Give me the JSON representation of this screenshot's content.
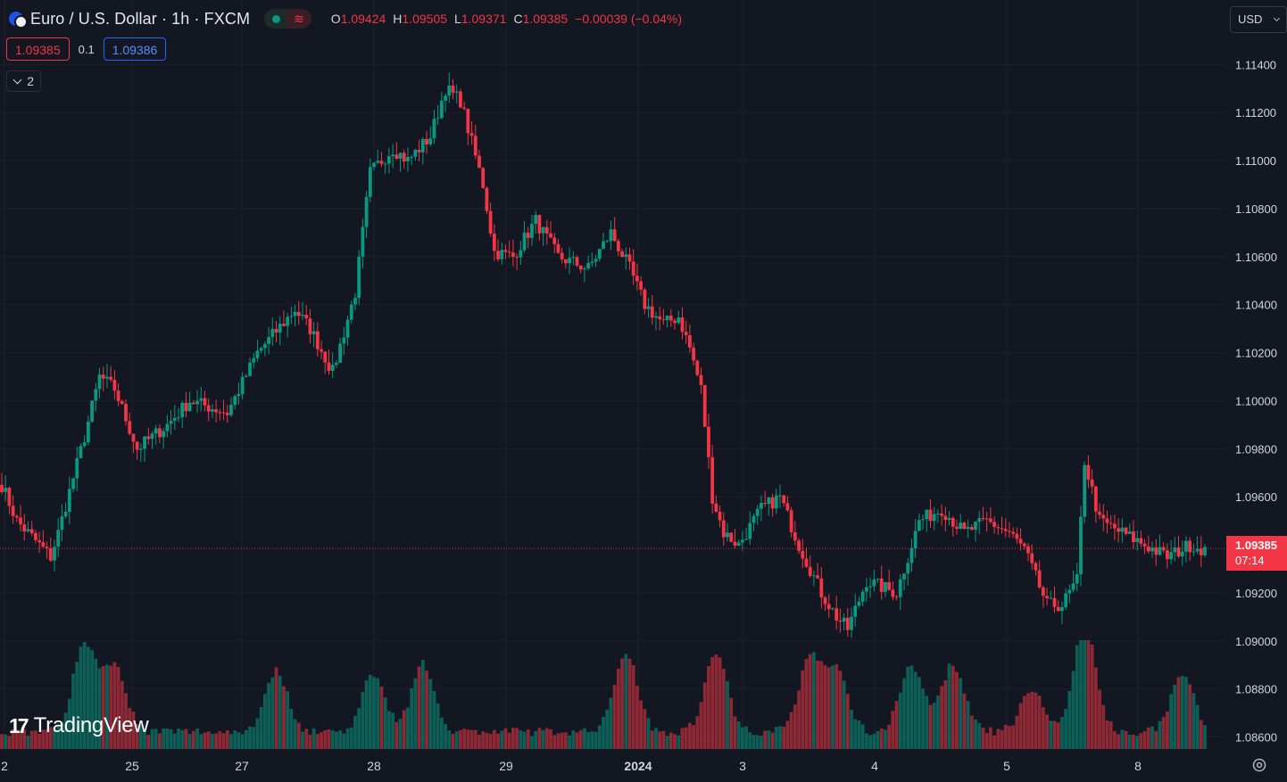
{
  "header": {
    "title": "Euro / U.S. Dollar · 1h · FXCM",
    "ohlc": [
      {
        "k": "O",
        "v": "1.09424"
      },
      {
        "k": "H",
        "v": "1.09505"
      },
      {
        "k": "L",
        "v": "1.09371"
      },
      {
        "k": "C",
        "v": "1.09385"
      }
    ],
    "change": "−0.00039 (−0.04%)",
    "status_icon": "market-open-dot",
    "delay_icon": "wave-icon"
  },
  "trade": {
    "sell": "1.09385",
    "spread": "0.1",
    "buy": "1.09386"
  },
  "indicators_toggle": "2",
  "currency": "USD",
  "last_price": {
    "price": "1.09385",
    "countdown": "07:14"
  },
  "logo_text": "TradingView",
  "colors": {
    "up": "#089981",
    "down": "#f23645",
    "background": "#131722",
    "grid": "#1c202b",
    "buy_accent": "#2962ff"
  },
  "chart_data": {
    "type": "candlestick",
    "timeframe": "1h",
    "y_axis": {
      "min": 1.0855,
      "max": 1.1152,
      "ticks": [
        "1.11400",
        "1.11200",
        "1.11000",
        "1.10800",
        "1.10600",
        "1.10400",
        "1.10200",
        "1.10000",
        "1.09800",
        "1.09600",
        "1.09200",
        "1.09000",
        "1.08800",
        "1.08600"
      ]
    },
    "x_axis": {
      "labels": [
        "2",
        "25",
        "27",
        "28",
        "29",
        "2024",
        "3",
        "4",
        "5",
        "8"
      ]
    },
    "grid": true,
    "series": [
      {
        "name": "price",
        "anchors": [
          [
            0,
            1.0965
          ],
          [
            4,
            1.095
          ],
          [
            13,
            1.0935
          ],
          [
            15,
            1.0945
          ],
          [
            22,
            1.0985
          ],
          [
            26,
            1.101
          ],
          [
            30,
            1.1005
          ],
          [
            36,
            1.098
          ],
          [
            44,
            1.099
          ],
          [
            50,
            1.1
          ],
          [
            60,
            1.0995
          ],
          [
            68,
            1.102
          ],
          [
            78,
            1.1038
          ],
          [
            82,
            1.103
          ],
          [
            88,
            1.1012
          ],
          [
            94,
            1.1045
          ],
          [
            98,
            1.1095
          ],
          [
            104,
            1.1105
          ],
          [
            108,
            1.11
          ],
          [
            114,
            1.111
          ],
          [
            118,
            1.113
          ],
          [
            122,
            1.1125
          ],
          [
            128,
            1.109
          ],
          [
            131,
            1.1062
          ],
          [
            136,
            1.106
          ],
          [
            142,
            1.1075
          ],
          [
            148,
            1.106
          ],
          [
            156,
            1.1055
          ],
          [
            162,
            1.107
          ],
          [
            167,
            1.1055
          ],
          [
            171,
            1.104
          ],
          [
            176,
            1.1032
          ],
          [
            180,
            1.1035
          ],
          [
            183,
            1.1022
          ],
          [
            186,
            1.1005
          ],
          [
            189,
            1.096
          ],
          [
            192,
            1.0945
          ],
          [
            196,
            1.094
          ],
          [
            202,
            1.0955
          ],
          [
            207,
            1.096
          ],
          [
            212,
            1.094
          ],
          [
            218,
            1.092
          ],
          [
            222,
            1.091
          ],
          [
            225,
            1.0905
          ],
          [
            230,
            1.0925
          ],
          [
            238,
            1.092
          ],
          [
            244,
            1.095
          ],
          [
            250,
            1.0955
          ],
          [
            256,
            1.0945
          ],
          [
            262,
            1.095
          ],
          [
            268,
            1.0945
          ],
          [
            272,
            1.0938
          ],
          [
            278,
            1.0915
          ],
          [
            282,
            1.0915
          ],
          [
            286,
            1.0925
          ],
          [
            288,
            1.0975
          ],
          [
            292,
            1.095
          ],
          [
            298,
            1.0945
          ],
          [
            304,
            1.094
          ],
          [
            310,
            1.0935
          ],
          [
            316,
            1.094
          ],
          [
            320,
            1.0938
          ]
        ]
      },
      {
        "name": "volume",
        "peaks": [
          [
            22,
            0.82
          ],
          [
            30,
            0.62
          ],
          [
            73,
            0.56
          ],
          [
            99,
            0.54
          ],
          [
            112,
            0.62
          ],
          [
            166,
            0.74
          ],
          [
            190,
            0.72
          ],
          [
            215,
            0.68
          ],
          [
            222,
            0.55
          ],
          [
            242,
            0.62
          ],
          [
            253,
            0.62
          ],
          [
            274,
            0.38
          ],
          [
            288,
            0.95
          ],
          [
            314,
            0.53
          ]
        ]
      }
    ]
  }
}
